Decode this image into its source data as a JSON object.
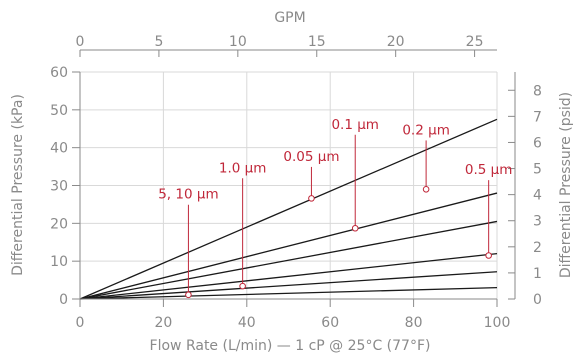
{
  "chart_data": {
    "type": "line",
    "xlabel": "Flow Rate (L/min) — 1 cP @ 25°C (77°F)",
    "ylabel": "Differential Pressure (kPa)",
    "top_xlabel": "GPM",
    "right_ylabel": "Differential Pressure (psid)",
    "xlim": [
      0,
      100
    ],
    "ylim": [
      0,
      60
    ],
    "top_xlim": [
      0,
      26.42
    ],
    "right_ylim": [
      0,
      8.7
    ],
    "x_ticks": [
      "0",
      "20",
      "40",
      "60",
      "80",
      "100"
    ],
    "y_ticks": [
      "0",
      "10",
      "20",
      "30",
      "40",
      "50",
      "60"
    ],
    "top_x_ticks": [
      "0",
      "5",
      "10",
      "15",
      "20",
      "25"
    ],
    "right_y_ticks": [
      "0",
      "1",
      "2",
      "3",
      "4",
      "5",
      "6",
      "7",
      "8"
    ],
    "grid": true,
    "series": [
      {
        "name": "0.1 µm",
        "x": [
          0,
          100
        ],
        "y": [
          0,
          47.5
        ]
      },
      {
        "name": "0.2 µm",
        "x": [
          0,
          100
        ],
        "y": [
          0,
          28
        ]
      },
      {
        "name": "0.05 µm",
        "x": [
          0,
          100
        ],
        "y": [
          0,
          20.5
        ]
      },
      {
        "name": "0.5 µm",
        "x": [
          0,
          100
        ],
        "y": [
          0,
          12
        ]
      },
      {
        "name": "1.0 µm",
        "x": [
          0,
          100
        ],
        "y": [
          0,
          7.2
        ]
      },
      {
        "name": "5, 10 µm",
        "x": [
          0,
          100
        ],
        "y": [
          0,
          3
        ]
      }
    ],
    "annotations": [
      {
        "text": "0.1 µm",
        "point": [
          66,
          18.7
        ],
        "label_y": 45
      },
      {
        "text": "0.2 µm",
        "point": [
          83,
          29
        ],
        "label_y": 43.5
      },
      {
        "text": "0.05 µm",
        "point": [
          55.5,
          26.6
        ],
        "label_y": 36.5
      },
      {
        "text": "0.5 µm",
        "point": [
          98,
          11.5
        ],
        "label_y": 33
      },
      {
        "text": "1.0 µm",
        "point": [
          39,
          3.4
        ],
        "label_y": 33.5
      },
      {
        "text": "5, 10 µm",
        "point": [
          26,
          1.1
        ],
        "label_y": 26.5
      }
    ],
    "colors": {
      "lines": "#1a1a1a",
      "annotation": "#c0283a",
      "axis": "#8a8a8a",
      "grid": "#d9d9d9"
    }
  }
}
